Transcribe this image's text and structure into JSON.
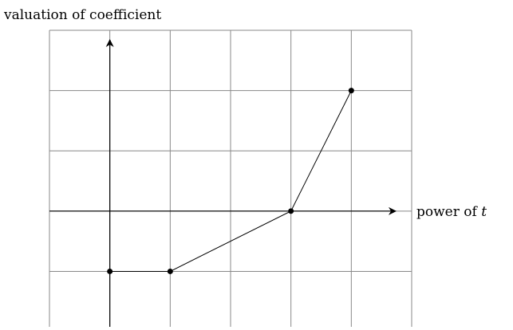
{
  "chart_data": {
    "type": "line",
    "xlabel": "power of t",
    "ylabel": "valuation of coefficient",
    "x": [
      0,
      1,
      3,
      4
    ],
    "series": [
      {
        "color": "#000000",
        "values": [
          -1,
          -1,
          0,
          2
        ]
      }
    ],
    "xlim": [
      -1,
      5
    ],
    "ylim": [
      -1.92,
      3
    ],
    "xticks": [
      -1,
      0,
      1,
      2,
      3,
      4,
      5
    ],
    "yticks": [
      -1,
      0,
      1,
      2,
      3
    ],
    "grid": true
  }
}
